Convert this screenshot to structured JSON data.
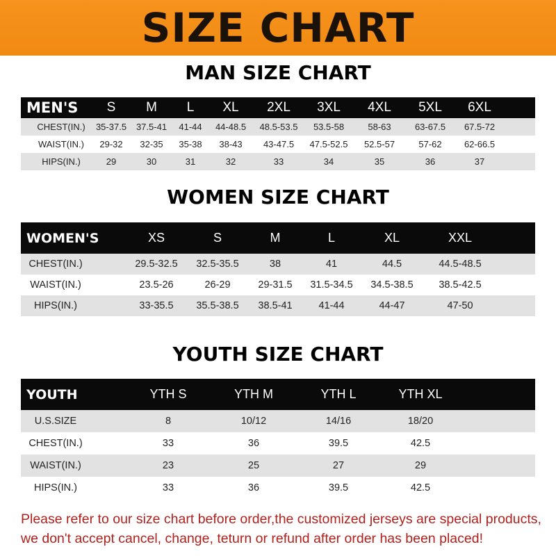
{
  "banner": "SIZE CHART",
  "colors": {
    "banner": "#f7931e",
    "header_row": "#0a0a0a",
    "stripe": "#e2e2e2",
    "notice": "#b0201c"
  },
  "men": {
    "title": "MAN SIZE CHART",
    "header": [
      "MEN'S",
      "S",
      "M",
      "L",
      "XL",
      "2XL",
      "3XL",
      "4XL",
      "5XL",
      "6XL"
    ],
    "rows": [
      [
        "CHEST(IN.)",
        "35-37.5",
        "37.5-41",
        "41-44",
        "44-48.5",
        "48.5-53.5",
        "53.5-58",
        "58-63",
        "63-67.5",
        "67.5-72"
      ],
      [
        "WAIST(IN.)",
        "29-32",
        "32-35",
        "35-38",
        "38-43",
        "43-47.5",
        "47.5-52.5",
        "52.5-57",
        "57-62",
        "62-66.5"
      ],
      [
        "HIPS(IN.)",
        "29",
        "30",
        "31",
        "32",
        "33",
        "34",
        "35",
        "36",
        "37"
      ]
    ]
  },
  "women": {
    "title": "WOMEN SIZE CHART",
    "header": [
      "WOMEN'S",
      "XS",
      "S",
      "M",
      "L",
      "XL",
      "XXL"
    ],
    "rows": [
      [
        "CHEST(IN.)",
        "29.5-32.5",
        "32.5-35.5",
        "38",
        "41",
        "44.5",
        "44.5-48.5"
      ],
      [
        "WAIST(IN.)",
        "23.5-26",
        "26-29",
        "29-31.5",
        "31.5-34.5",
        "34.5-38.5",
        "38.5-42.5"
      ],
      [
        "HIPS(IN.)",
        "33-35.5",
        "35.5-38.5",
        "38.5-41",
        "41-44",
        "44-47",
        "47-50"
      ]
    ]
  },
  "youth": {
    "title": "YOUTH SIZE CHART",
    "header": [
      "YOUTH",
      "YTH S",
      "YTH M",
      "YTH L",
      "YTH XL"
    ],
    "rows": [
      [
        "U.S.SIZE",
        "8",
        "10/12",
        "14/16",
        "18/20"
      ],
      [
        "CHEST(IN.)",
        "33",
        "36",
        "39.5",
        "42.5"
      ],
      [
        "WAIST(IN.)",
        "23",
        "25",
        "27",
        "29"
      ],
      [
        "HIPS(IN.)",
        "33",
        "36",
        "39.5",
        "42.5"
      ]
    ]
  },
  "notice": {
    "line1": "Please refer to our size chart before order,the customized jerseys are special products,",
    "line2": "we don't accept cancel, change, teturn or refund after order has been placed!"
  }
}
